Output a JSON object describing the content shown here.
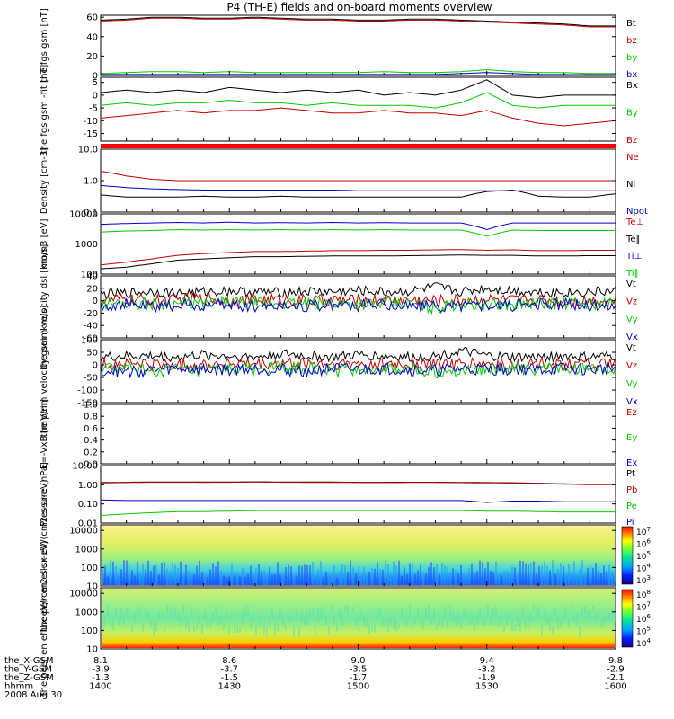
{
  "title": "P4 (TH-E) fields and on-board moments overview",
  "footer": {
    "rows": [
      {
        "label": "the_X-GSM",
        "values": [
          "8.1",
          "8.6",
          "9.0",
          "9.4",
          "9.8"
        ]
      },
      {
        "label": "the_Y-GSM",
        "values": [
          "-3.9",
          "-3.7",
          "-3.5",
          "-3.2",
          "-2.9"
        ]
      },
      {
        "label": "the_Z-GSM",
        "values": [
          "-1.3",
          "-1.5",
          "-1.7",
          "-1.9",
          "-2.1"
        ]
      },
      {
        "label": "hhmm",
        "values": [
          "1400",
          "1430",
          "1500",
          "1530",
          "1600"
        ]
      }
    ],
    "date": "2008 Aug 30"
  },
  "colorbars": {
    "ion": [
      "10^7",
      "10^6",
      "10^5",
      "10^4",
      "10^3"
    ],
    "electron": [
      "10^8",
      "10^7",
      "10^6",
      "10^5",
      "10^4"
    ]
  },
  "chart_data": [
    {
      "panel": "fgs-gsm-magnitude",
      "type": "line",
      "ylabel": "the fgs gsm [nT]",
      "ylim": [
        0,
        62
      ],
      "yticks": [
        "0",
        "20",
        "40",
        "60"
      ],
      "series": [
        {
          "name": "Bt",
          "color": "#000000",
          "values": [
            57,
            58,
            60,
            60,
            59,
            59,
            60,
            59,
            58,
            58,
            57,
            57,
            58,
            58,
            57,
            56,
            55,
            54,
            53,
            51,
            51
          ]
        },
        {
          "name": "bz",
          "color": "#c00000",
          "values": [
            56,
            57,
            59,
            59,
            58,
            58,
            59,
            58,
            57,
            57,
            56,
            56,
            57,
            57,
            56,
            55,
            54,
            53,
            52,
            50,
            50
          ]
        },
        {
          "name": "by",
          "color": "#00cc00",
          "values": [
            2,
            3,
            4,
            4,
            3,
            4,
            3,
            3,
            3,
            3,
            3,
            4,
            3,
            3,
            4,
            6,
            4,
            3,
            3,
            2,
            2
          ]
        },
        {
          "name": "bx",
          "color": "#0000cc",
          "values": [
            1,
            1,
            1,
            1,
            1,
            1,
            1,
            1,
            1,
            1,
            1,
            1,
            1,
            1,
            2,
            3,
            2,
            1,
            1,
            0,
            0
          ]
        }
      ]
    },
    {
      "panel": "fgs-gsm-components",
      "type": "line",
      "ylabel": "the fgs gsm -fit [nT]",
      "ylim": [
        -18,
        7
      ],
      "yticks": [
        "5",
        "0",
        "-5",
        "-10",
        "-15"
      ],
      "series": [
        {
          "name": "Bx",
          "color": "#000000",
          "values": [
            1,
            2,
            1,
            2,
            1,
            3,
            2,
            1,
            2,
            1,
            2,
            0,
            1,
            0,
            2,
            6,
            0,
            -1,
            0,
            0,
            0
          ]
        },
        {
          "name": "By",
          "color": "#00cc00",
          "values": [
            -4,
            -3,
            -4,
            -3,
            -3,
            -2,
            -3,
            -3,
            -4,
            -3,
            -4,
            -4,
            -4,
            -5,
            -3,
            1,
            -4,
            -5,
            -4,
            -4,
            -4
          ]
        },
        {
          "name": "Bz",
          "color": "#c00000",
          "values": [
            -9,
            -8,
            -7,
            -6,
            -7,
            -6,
            -6,
            -5,
            -6,
            -7,
            -7,
            -6,
            -7,
            -7,
            -8,
            -6,
            -9,
            -11,
            -12,
            -11,
            -10
          ]
        }
      ]
    },
    {
      "panel": "density",
      "type": "line",
      "ylabel": "Density [cm-3]",
      "scale": "log",
      "ylim": [
        0.1,
        10
      ],
      "yticks": [
        "10.0",
        "1.0",
        "0.1"
      ],
      "series": [
        {
          "name": "Ne",
          "color": "#c00000",
          "values": [
            2.0,
            1.4,
            1.1,
            1.0,
            1.0,
            1.0,
            1.0,
            1.0,
            1.0,
            1.0,
            1.0,
            1.0,
            1.0,
            1.0,
            1.0,
            1.0,
            1.0,
            1.0,
            1.0,
            1.0,
            1.0
          ]
        },
        {
          "name": "Ni",
          "color": "#000000",
          "values": [
            0.35,
            0.3,
            0.3,
            0.3,
            0.32,
            0.3,
            0.3,
            0.32,
            0.3,
            0.3,
            0.3,
            0.3,
            0.3,
            0.3,
            0.3,
            0.45,
            0.5,
            0.32,
            0.3,
            0.3,
            0.38
          ]
        },
        {
          "name": "Npot",
          "color": "#0000cc",
          "values": [
            0.7,
            0.6,
            0.55,
            0.52,
            0.5,
            0.5,
            0.5,
            0.5,
            0.5,
            0.5,
            0.48,
            0.48,
            0.48,
            0.48,
            0.48,
            0.48,
            0.48,
            0.48,
            0.48,
            0.48,
            0.48
          ]
        }
      ]
    },
    {
      "panel": "temperature",
      "type": "line",
      "ylabel": "mom3 [eV]",
      "scale": "log",
      "ylim": [
        100,
        10000
      ],
      "yticks": [
        "10000",
        "1000",
        "100"
      ],
      "series": [
        {
          "name": "Te⊥",
          "color": "#c00000",
          "values": [
            200,
            250,
            320,
            420,
            480,
            520,
            560,
            560,
            580,
            600,
            600,
            620,
            620,
            640,
            650,
            620,
            640,
            600,
            600,
            620,
            620
          ]
        },
        {
          "name": "Te∥",
          "color": "#000000",
          "values": [
            150,
            170,
            220,
            290,
            320,
            350,
            380,
            380,
            390,
            400,
            400,
            400,
            410,
            420,
            430,
            420,
            420,
            400,
            400,
            410,
            410
          ]
        },
        {
          "name": "Ti⊥",
          "color": "#0000cc",
          "values": [
            4500,
            4800,
            5000,
            5200,
            5000,
            5300,
            5000,
            5100,
            5000,
            5200,
            5000,
            5100,
            5000,
            5000,
            5000,
            3000,
            5000,
            5000,
            5000,
            5000,
            5000
          ]
        },
        {
          "name": "Ti∥",
          "color": "#00cc00",
          "values": [
            2500,
            2700,
            2800,
            3000,
            2900,
            3000,
            2900,
            3000,
            2900,
            3000,
            2900,
            3000,
            2900,
            2900,
            2900,
            1800,
            2900,
            2800,
            2800,
            2800,
            2800
          ]
        }
      ]
    },
    {
      "panel": "peim-velocity-dsl",
      "type": "line",
      "ylabel": "the peim velocity dsl [km/s]",
      "ylim": [
        -60,
        40
      ],
      "yticks": [
        "40",
        "20",
        "0",
        "-20",
        "-40",
        "-60"
      ],
      "series": [
        {
          "name": "Vt",
          "color": "#000000",
          "values": [
            10,
            12,
            15,
            12,
            14,
            16,
            14,
            13,
            15,
            14,
            16,
            14,
            15,
            22,
            14,
            20,
            16,
            14,
            13,
            14,
            15
          ]
        },
        {
          "name": "Vz",
          "color": "#c00000",
          "values": [
            0,
            2,
            0,
            1,
            5,
            0,
            1,
            2,
            0,
            1,
            0,
            2,
            1,
            0,
            1,
            2,
            0,
            1,
            0,
            1,
            0
          ]
        },
        {
          "name": "Vy",
          "color": "#00cc00",
          "values": [
            -5,
            -3,
            -6,
            -4,
            -5,
            -3,
            -5,
            -4,
            -6,
            -4,
            -5,
            -4,
            -5,
            -12,
            -4,
            -8,
            -6,
            -4,
            -5,
            -4,
            -5
          ]
        },
        {
          "name": "Vx",
          "color": "#0000cc",
          "values": [
            -8,
            -6,
            -10,
            -7,
            -8,
            -6,
            -9,
            -7,
            -8,
            -7,
            -8,
            -7,
            -8,
            -10,
            -7,
            -6,
            -8,
            -7,
            -6,
            -8,
            -7
          ]
        }
      ]
    },
    {
      "panel": "peim-velocity-gsm",
      "type": "line",
      "ylabel": "the peim velocity gsm [km/s]",
      "ylim": [
        -150,
        100
      ],
      "yticks": [
        "100",
        "50",
        "0",
        "-50",
        "-100",
        "-150"
      ],
      "series": [
        {
          "name": "Vt",
          "color": "#000000",
          "values": [
            30,
            35,
            35,
            30,
            40,
            35,
            30,
            45,
            35,
            30,
            40,
            35,
            30,
            35,
            55,
            35,
            30,
            30,
            35,
            30,
            35
          ]
        },
        {
          "name": "Vz",
          "color": "#c00000",
          "values": [
            0,
            5,
            2,
            0,
            3,
            5,
            0,
            2,
            5,
            0,
            3,
            2,
            0,
            5,
            3,
            2,
            0,
            3,
            2,
            0,
            2
          ]
        },
        {
          "name": "Vy",
          "color": "#00cc00",
          "values": [
            -10,
            -15,
            -25,
            -20,
            -30,
            -15,
            -20,
            -10,
            -15,
            -25,
            -15,
            -20,
            -20,
            -30,
            -20,
            -15,
            -20,
            -15,
            -20,
            -15,
            -15
          ]
        },
        {
          "name": "Vx",
          "color": "#0000cc",
          "values": [
            -20,
            -30,
            -20,
            -15,
            -20,
            -20,
            -15,
            -20,
            -25,
            -15,
            -20,
            -15,
            -20,
            -25,
            -15,
            -20,
            -15,
            -20,
            -15,
            -20,
            -15
          ]
        }
      ]
    },
    {
      "panel": "e-field",
      "type": "line",
      "ylabel": "E=-VxB [mV/m]",
      "ylim": [
        0,
        1
      ],
      "yticks": [
        "1.0",
        "0.8",
        "0.6",
        "0.4",
        "0.2",
        "0.0"
      ],
      "series": [
        {
          "name": "Ez",
          "color": "#c00000",
          "values": []
        },
        {
          "name": "Ey",
          "color": "#00cc00",
          "values": []
        },
        {
          "name": "Ex",
          "color": "#0000cc",
          "values": []
        }
      ]
    },
    {
      "panel": "pressure",
      "type": "line",
      "ylabel": "Pressure [nPa]",
      "scale": "log",
      "ylim": [
        0.01,
        10
      ],
      "yticks": [
        "10.00",
        "1.00",
        "0.10",
        "0.01"
      ],
      "series": [
        {
          "name": "Pt",
          "color": "#000000",
          "values": [
            1.3,
            1.35,
            1.4,
            1.4,
            1.38,
            1.4,
            1.42,
            1.4,
            1.38,
            1.38,
            1.35,
            1.35,
            1.36,
            1.36,
            1.33,
            1.3,
            1.27,
            1.2,
            1.12,
            1.05,
            1.05
          ]
        },
        {
          "name": "Pb",
          "color": "#c00000",
          "values": [
            1.25,
            1.3,
            1.35,
            1.35,
            1.33,
            1.35,
            1.37,
            1.35,
            1.33,
            1.33,
            1.3,
            1.3,
            1.31,
            1.31,
            1.28,
            1.25,
            1.22,
            1.15,
            1.07,
            1.0,
            1.0
          ]
        },
        {
          "name": "Pe",
          "color": "#00cc00",
          "values": [
            0.025,
            0.03,
            0.035,
            0.04,
            0.04,
            0.042,
            0.045,
            0.045,
            0.045,
            0.045,
            0.045,
            0.045,
            0.045,
            0.045,
            0.045,
            0.042,
            0.042,
            0.04,
            0.038,
            0.038,
            0.038
          ]
        },
        {
          "name": "Pi",
          "color": "#0000cc",
          "values": [
            0.16,
            0.15,
            0.15,
            0.15,
            0.15,
            0.15,
            0.15,
            0.15,
            0.15,
            0.15,
            0.15,
            0.15,
            0.15,
            0.15,
            0.15,
            0.12,
            0.14,
            0.14,
            0.13,
            0.13,
            0.13
          ]
        }
      ]
    },
    {
      "panel": "peir-en-eflux",
      "type": "heatmap",
      "ylabel": "the peir en eflux eV/(cm2-s-sr-eV)",
      "scale": "log",
      "ylim": [
        10,
        20000
      ],
      "yticks": [
        "10000",
        "1000",
        "100",
        "10"
      ]
    },
    {
      "panel": "peer-en-eflux",
      "type": "heatmap",
      "ylabel": "the peer en eflux eV/(cm2-s-sr-eV)",
      "scale": "log",
      "ylim": [
        10,
        20000
      ],
      "yticks": [
        "10000",
        "1000",
        "100",
        "10"
      ]
    }
  ]
}
